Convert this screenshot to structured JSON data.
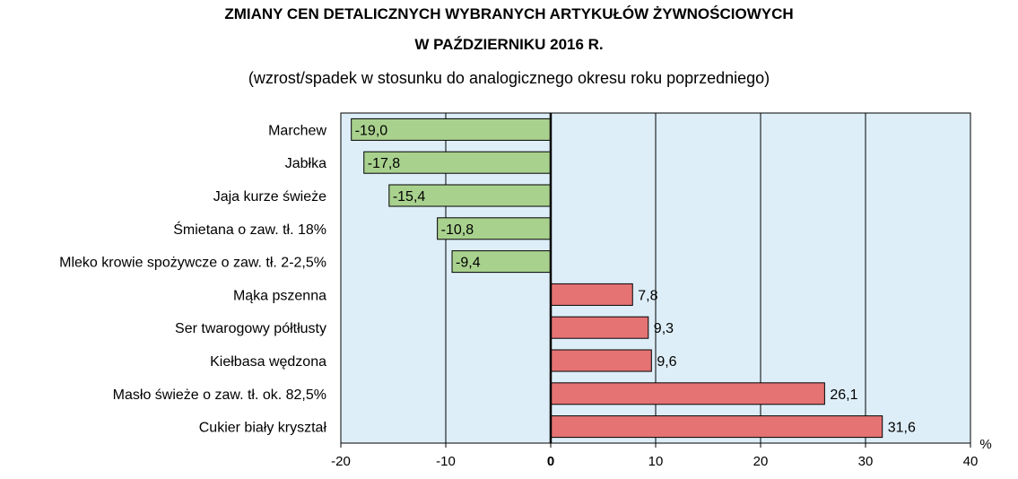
{
  "header": {
    "title_line1": "ZMIANY CEN DETALICZNYCH WYBRANYCH ARTYKUŁÓW ŻYWNOŚCIOWYCH",
    "title_line2": "W PAŹDZIERNIKU 2016 R.",
    "subtitle": "(wzrost/spadek w stosunku do analogicznego okresu roku poprzedniego)"
  },
  "chart_data": {
    "type": "bar",
    "orientation": "horizontal",
    "categories": [
      "Marchew",
      "Jabłka",
      "Jaja kurze świeże",
      "Śmietana o zaw. tł. 18%",
      "Mleko krowie spożywcze o zaw. tł. 2-2,5%",
      "Mąka pszenna",
      "Ser twarogowy półtłusty",
      "Kiełbasa wędzona",
      "Masło świeże o zaw. tł. ok. 82,5%",
      "Cukier biały kryształ"
    ],
    "values": [
      -19.0,
      -17.8,
      -15.4,
      -10.8,
      -9.4,
      7.8,
      9.3,
      9.6,
      26.1,
      31.6
    ],
    "value_labels": [
      "-19,0",
      "-17,8",
      "-15,4",
      "-10,8",
      "-9,4",
      "7,8",
      "9,3",
      "9,6",
      "26,1",
      "31,6"
    ],
    "xlim": [
      -20,
      40
    ],
    "xticks": [
      "-20",
      "-10",
      "0",
      "10",
      "20",
      "30",
      "40"
    ],
    "xtick_values": [
      -20,
      -10,
      0,
      10,
      20,
      30,
      40
    ],
    "unit_label": "%",
    "grid": true,
    "colors": {
      "negative": "#a9d18e",
      "positive": "#e57373",
      "plot_background": "#ddeef8",
      "bar_border": "#000000",
      "zero_line": "#000000",
      "gridline": "#000000"
    }
  }
}
